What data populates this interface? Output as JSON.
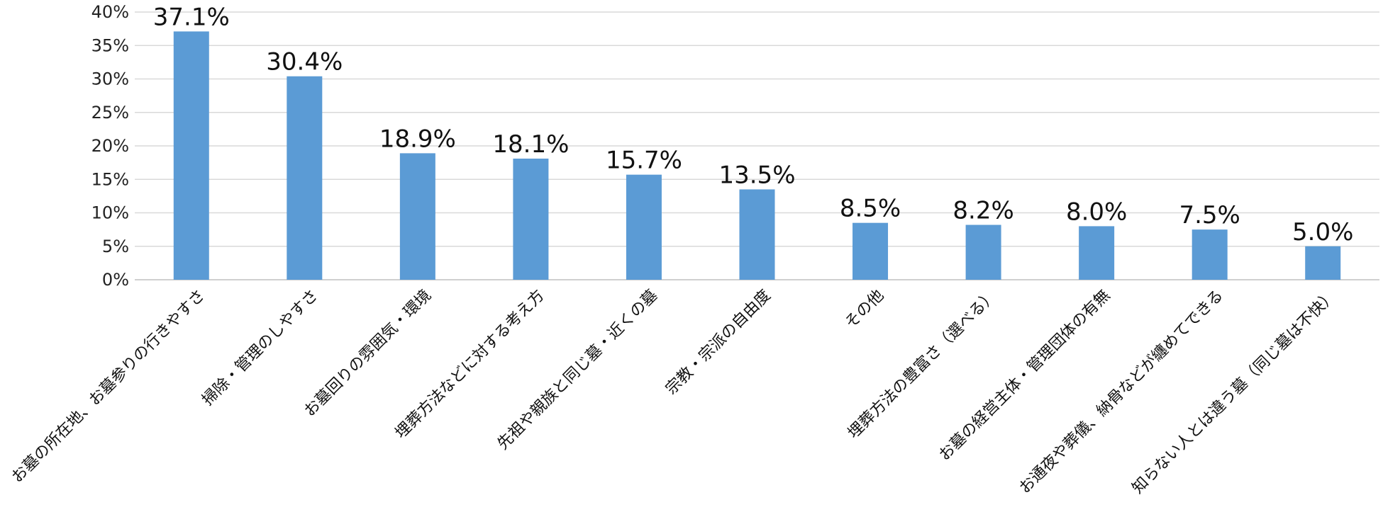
{
  "chart_data": {
    "type": "bar",
    "categories": [
      "お墓の所在地、お墓参りの行きやすさ",
      "掃除・管理のしやすさ",
      "お墓回りの雰囲気・環境",
      "埋葬方法などに対する考え方",
      "先祖や親族と同じ墓・近くの墓",
      "宗教・宗派の自由度",
      "その他",
      "埋葬方法の豊富さ（選べる）",
      "お墓の経営主体・管理団体の有無",
      "お通夜や葬儀、納骨などが纏めてできる",
      "知らない人とは違う墓（同じ墓は不快）"
    ],
    "values": [
      37.1,
      30.4,
      18.9,
      18.1,
      15.7,
      13.5,
      8.5,
      8.2,
      8.0,
      7.5,
      5.0
    ],
    "data_labels": [
      "37.1%",
      "30.4%",
      "18.9%",
      "18.1%",
      "15.7%",
      "13.5%",
      "8.5%",
      "8.2%",
      "8.0%",
      "7.5%",
      "5.0%"
    ],
    "y_ticks": [
      0,
      5,
      10,
      15,
      20,
      25,
      30,
      35,
      40
    ],
    "y_tick_labels": [
      "0%",
      "5%",
      "10%",
      "15%",
      "20%",
      "25%",
      "30%",
      "35%",
      "40%"
    ],
    "ylim": [
      0,
      40
    ],
    "grid": true,
    "legend": "none",
    "bar_color": "#5b9bd5"
  }
}
